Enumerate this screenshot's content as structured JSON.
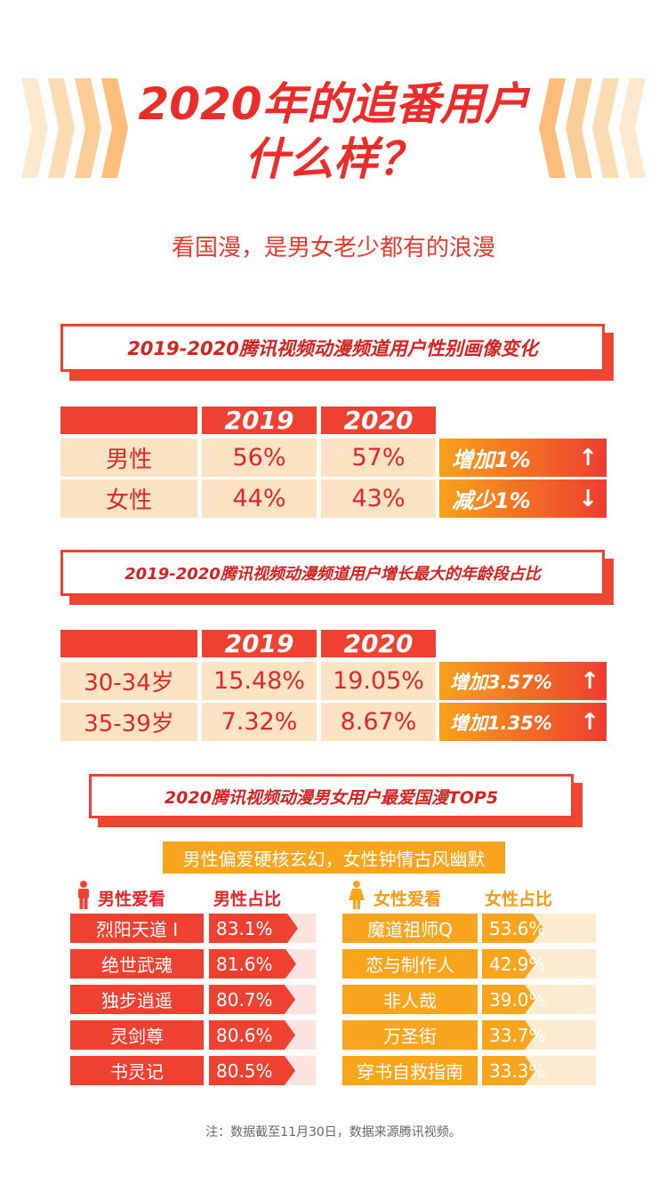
{
  "header": {
    "title_line1": "2020年的追番用户",
    "title_line2": "什么样？",
    "subtitle": "看国漫，是男女老少都有的浪漫"
  },
  "gender_section": {
    "banner": "2019-2020腾讯视频动漫频道用户性别画像变化",
    "years": [
      "2019",
      "2020"
    ],
    "rows": [
      {
        "label": "男性",
        "v2019": "56%",
        "v2020": "57%",
        "change": "增加1%",
        "direction": "up"
      },
      {
        "label": "女性",
        "v2019": "44%",
        "v2020": "43%",
        "change": "减少1%",
        "direction": "down"
      }
    ]
  },
  "age_section": {
    "banner": "2019-2020腾讯视频动漫频道用户增长最大的年龄段占比",
    "years": [
      "2019",
      "2020"
    ],
    "rows": [
      {
        "label": "30-34岁",
        "v2019": "15.48%",
        "v2020": "19.05%",
        "change": "增加3.57%",
        "direction": "up"
      },
      {
        "label": "35-39岁",
        "v2019": "7.32%",
        "v2020": "8.67%",
        "change": "增加1.35%",
        "direction": "up"
      }
    ]
  },
  "top5_section": {
    "banner": "2020腾讯视频动漫男女用户最爱国漫TOP5",
    "tagline": "男性偏爱硬核玄幻，女性钟情古风幽默",
    "male": {
      "heading": "男性爱看",
      "share_heading": "男性占比",
      "items": [
        {
          "name": "烈阳天道 I",
          "share": "83.1%",
          "value": 83.1
        },
        {
          "name": "绝世武魂",
          "share": "81.6%",
          "value": 81.6
        },
        {
          "name": "独步逍遥",
          "share": "80.7%",
          "value": 80.7
        },
        {
          "name": "灵剑尊",
          "share": "80.6%",
          "value": 80.6
        },
        {
          "name": "书灵记",
          "share": "80.5%",
          "value": 80.5
        }
      ]
    },
    "female": {
      "heading": "女性爱看",
      "share_heading": "女性占比",
      "items": [
        {
          "name": "魔道祖师Q",
          "share": "53.6%",
          "value": 53.6
        },
        {
          "name": "恋与制作人",
          "share": "42.9%",
          "value": 42.9
        },
        {
          "name": "非人哉",
          "share": "39.0%",
          "value": 39.0
        },
        {
          "name": "万圣街",
          "share": "33.7%",
          "value": 33.7
        },
        {
          "name": "穿书自救指南",
          "share": "33.3%",
          "value": 33.3
        }
      ]
    }
  },
  "footer": {
    "note": "注：数据截至11月30日，数据来源腾讯视频。"
  },
  "colors": {
    "red": "#ef4131",
    "orange": "#f9a41d",
    "cream": "#fbe3c3",
    "pale_red": "#fde3e0",
    "pale_orange": "#fdecd0"
  },
  "icons": {
    "male": "male-person-icon",
    "female": "female-person-icon",
    "up": "arrow-up-icon",
    "down": "arrow-down-icon"
  }
}
